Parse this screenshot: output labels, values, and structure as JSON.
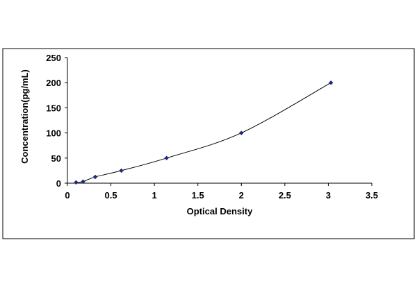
{
  "chart_data": {
    "type": "scatter",
    "title": "",
    "xlabel": "Optical Density",
    "ylabel": "Concentration(pg/mL)",
    "xlim": [
      0,
      3.5
    ],
    "ylim": [
      0,
      250
    ],
    "xticks": [
      0,
      0.5,
      1,
      1.5,
      2,
      2.5,
      3,
      3.5
    ],
    "xtick_labels": [
      "0",
      "0.5",
      "1",
      "1.5",
      "2",
      "2.5",
      "3",
      "3.5"
    ],
    "yticks": [
      0,
      50,
      100,
      150,
      200,
      250
    ],
    "ytick_labels": [
      "0",
      "50",
      "100",
      "150",
      "200",
      "250"
    ],
    "grid": false,
    "legend": "none",
    "series": [
      {
        "x": [
          0.1,
          0.18,
          0.32,
          0.62,
          1.14,
          2.0,
          3.03
        ],
        "y": [
          1.56,
          3.12,
          12.5,
          25,
          50,
          100,
          200
        ],
        "marker": "diamond",
        "color": "#1f2a7a",
        "trendline": "smooth"
      }
    ]
  }
}
